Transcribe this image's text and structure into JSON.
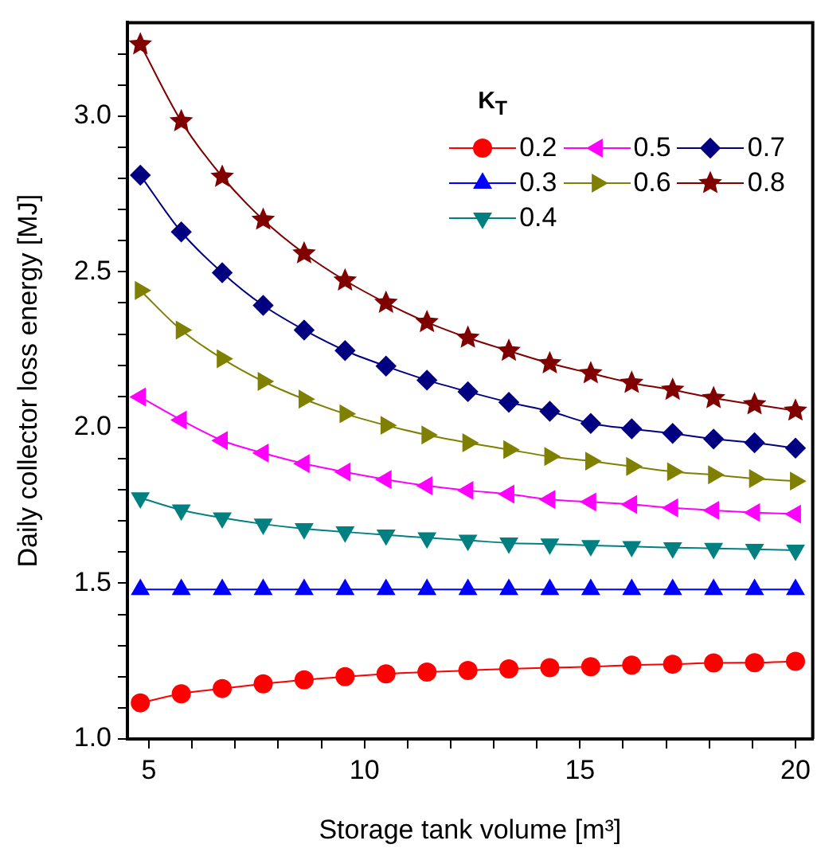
{
  "chart_data": {
    "type": "line",
    "xlabel": "Storage tank volume [m³]",
    "ylabel": "Daily collector loss energy [MJ]",
    "legend_title": "K$_{T}$",
    "legend": "top right",
    "grid": false,
    "x": [
      4.8,
      5.75,
      6.7,
      7.65,
      8.6,
      9.55,
      10.5,
      11.45,
      12.4,
      13.35,
      14.3,
      15.25,
      16.2,
      17.15,
      18.1,
      19.05,
      20.0
    ],
    "xlim": [
      4.5,
      20.4
    ],
    "xticks": [
      5,
      {
        "value": 6,
        "label": null
      },
      {
        "value": 7,
        "label": null
      },
      {
        "value": 8,
        "label": null
      },
      {
        "value": 9,
        "label": null
      },
      10,
      {
        "value": 11,
        "label": null
      },
      {
        "value": 12,
        "label": null
      },
      {
        "value": 13,
        "label": null
      },
      {
        "value": 14,
        "label": null
      },
      15,
      {
        "value": 16,
        "label": null
      },
      {
        "value": 17,
        "label": null
      },
      {
        "value": 18,
        "label": null
      },
      {
        "value": 19,
        "label": null
      },
      20
    ],
    "ylim": [
      1.0,
      3.3
    ],
    "yticks": [
      {
        "value": 1,
        "label": "1.0"
      },
      {
        "value": 1.1,
        "label": null
      },
      {
        "value": 1.2,
        "label": null
      },
      {
        "value": 1.3,
        "label": null
      },
      {
        "value": 1.4,
        "label": null
      },
      1.5,
      {
        "value": 1.6,
        "label": null
      },
      {
        "value": 1.7,
        "label": null
      },
      {
        "value": 1.8,
        "label": null
      },
      {
        "value": 1.9,
        "label": null
      },
      {
        "value": 2,
        "label": "2.0"
      },
      {
        "value": 2.1,
        "label": null
      },
      {
        "value": 2.2,
        "label": null
      },
      {
        "value": 2.3,
        "label": null
      },
      {
        "value": 2.4,
        "label": null
      },
      2.5,
      {
        "value": 2.6,
        "label": null
      },
      {
        "value": 2.7,
        "label": null
      },
      {
        "value": 2.8,
        "label": null
      },
      {
        "value": 2.9,
        "label": null
      },
      {
        "value": 3,
        "label": "3.0"
      },
      {
        "value": 3.1,
        "label": null
      },
      {
        "value": 3.2,
        "label": null
      }
    ],
    "series": [
      {
        "name": "0.2",
        "color": "#ff0000",
        "marker": "circle",
        "values": [
          1.116,
          1.145,
          1.162,
          1.177,
          1.19,
          1.2,
          1.209,
          1.215,
          1.22,
          1.225,
          1.229,
          1.232,
          1.237,
          1.24,
          1.244,
          1.245,
          1.249
        ]
      },
      {
        "name": "0.3",
        "color": "#0000ff",
        "marker": "triangle",
        "values": [
          1.48,
          1.48,
          1.48,
          1.48,
          1.48,
          1.48,
          1.48,
          1.48,
          1.48,
          1.48,
          1.48,
          1.48,
          1.48,
          1.48,
          1.48,
          1.48,
          1.48
        ]
      },
      {
        "name": "0.4",
        "color": "#008080",
        "marker": "triangle-down",
        "values": [
          1.774,
          1.735,
          1.71,
          1.69,
          1.675,
          1.665,
          1.655,
          1.646,
          1.638,
          1.629,
          1.626,
          1.621,
          1.618,
          1.614,
          1.612,
          1.609,
          1.606
        ]
      },
      {
        "name": "0.5",
        "color": "#ff00ff",
        "marker": "triangle-left",
        "values": [
          2.098,
          2.024,
          1.958,
          1.918,
          1.884,
          1.857,
          1.833,
          1.813,
          1.798,
          1.786,
          1.769,
          1.761,
          1.753,
          1.742,
          1.734,
          1.727,
          1.722
        ]
      },
      {
        "name": "0.6",
        "color": "#808000",
        "marker": "triangle-right",
        "values": [
          2.44,
          2.313,
          2.221,
          2.148,
          2.091,
          2.044,
          2.007,
          1.976,
          1.951,
          1.929,
          1.907,
          1.892,
          1.875,
          1.858,
          1.848,
          1.836,
          1.828
        ]
      },
      {
        "name": "0.7",
        "color": "#000080",
        "marker": "diamond",
        "values": [
          2.81,
          2.628,
          2.497,
          2.392,
          2.313,
          2.247,
          2.197,
          2.152,
          2.115,
          2.081,
          2.052,
          2.013,
          1.996,
          1.981,
          1.963,
          1.951,
          1.934
        ]
      },
      {
        "name": "0.8",
        "color": "#800000",
        "marker": "star",
        "values": [
          3.23,
          2.983,
          2.805,
          2.667,
          2.559,
          2.472,
          2.4,
          2.338,
          2.288,
          2.246,
          2.206,
          2.174,
          2.143,
          2.121,
          2.094,
          2.074,
          2.054
        ]
      }
    ]
  }
}
